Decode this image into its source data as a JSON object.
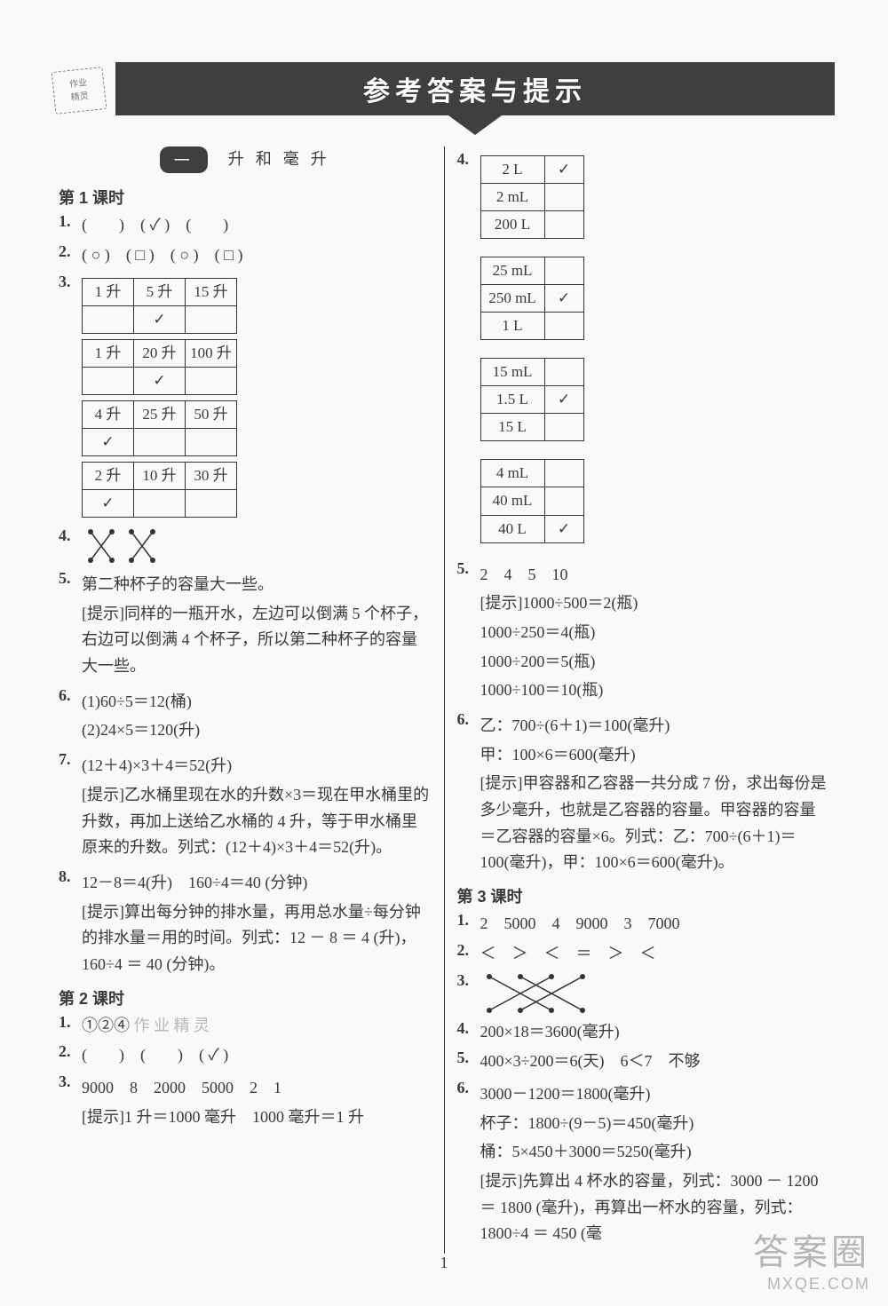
{
  "header": {
    "title": "参考答案与提示"
  },
  "stamp": {
    "line1": "作业",
    "line2": "精灵"
  },
  "unit": {
    "number": "一",
    "name": "升 和 毫 升"
  },
  "left": {
    "s1": {
      "title": "第 1 课时",
      "q1": "(　　)　( ✓ )　(　　)",
      "q2": "( ○ )　( □ )　( ○ )　( □ )",
      "q3": {
        "tables": [
          {
            "h": [
              "1 升",
              "5 升",
              "15 升"
            ],
            "mark_col": 1,
            "mark": "✓"
          },
          {
            "h": [
              "1 升",
              "20 升",
              "100 升"
            ],
            "mark_col": 1,
            "mark": "✓"
          },
          {
            "h": [
              "4 升",
              "25 升",
              "50 升"
            ],
            "mark_col": 0,
            "mark": "✓"
          },
          {
            "h": [
              "2 升",
              "10 升",
              "30 升"
            ],
            "mark_col": 0,
            "mark": "✓"
          }
        ]
      },
      "q5": {
        "a": "第二种杯子的容量大一些。",
        "hint": "[提示]同样的一瓶开水，左边可以倒满 5 个杯子，右边可以倒满 4 个杯子，所以第二种杯子的容量大一些。"
      },
      "q6": {
        "a": "(1)60÷5＝12(桶)",
        "b": "(2)24×5＝120(升)"
      },
      "q7": {
        "a": "(12＋4)×3＋4＝52(升)",
        "hint": "[提示]乙水桶里现在水的升数×3＝现在甲水桶里的升数，再加上送给乙水桶的 4 升，等于甲水桶里原来的升数。列式：(12＋4)×3＋4＝52(升)。"
      },
      "q8": {
        "a": "12－8＝4(升)　160÷4＝40 (分钟)",
        "hint": "[提示]算出每分钟的排水量，再用总水量÷每分钟的排水量＝用的时间。列式：12 － 8 ＝ 4 (升)，160÷4 ＝ 40 (分钟)。"
      }
    },
    "s2": {
      "title": "第 2 课时",
      "q1": "①②④",
      "q2": "(　　)　(　　)　( ✓ )",
      "q3": {
        "a": "9000　8　2000　5000　2　1",
        "hint": "[提示]1 升＝1000 毫升　1000 毫升＝1 升"
      }
    }
  },
  "right": {
    "q4": {
      "tables": [
        {
          "rows": [
            "2 L",
            "2 mL",
            "200 L"
          ],
          "mark_row": 0,
          "mark": "✓"
        },
        {
          "rows": [
            "25 mL",
            "250 mL",
            "1 L"
          ],
          "mark_row": 1,
          "mark": "✓"
        },
        {
          "rows": [
            "15 mL",
            "1.5 L",
            "15 L"
          ],
          "mark_row": 1,
          "mark": "✓"
        },
        {
          "rows": [
            "4 mL",
            "40 mL",
            "40 L"
          ],
          "mark_row": 2,
          "mark": "✓"
        }
      ]
    },
    "q5": {
      "a": "2　4　5　10",
      "hints": [
        "[提示]1000÷500＝2(瓶)",
        "1000÷250＝4(瓶)",
        "1000÷200＝5(瓶)",
        "1000÷100＝10(瓶)"
      ]
    },
    "q6": {
      "a": "乙：700÷(6＋1)＝100(毫升)",
      "b": "甲：100×6＝600(毫升)",
      "hint": "[提示]甲容器和乙容器一共分成 7 份，求出每份是多少毫升，也就是乙容器的容量。甲容器的容量＝乙容器的容量×6。列式：乙：700÷(6＋1)＝100(毫升)，甲：100×6＝600(毫升)。"
    },
    "s3": {
      "title": "第 3 课时",
      "q1": "2　5000　4　9000　3　7000",
      "q2": "＜　＞　＜　＝　＞　＜",
      "q4": "200×18＝3600(毫升)",
      "q5": "400×3÷200＝6(天)　6＜7　不够",
      "q6": {
        "a": "3000－1200＝1800(毫升)",
        "b": "杯子：1800÷(9－5)＝450(毫升)",
        "c": "桶：5×450＋3000＝5250(毫升)",
        "hint": "[提示]先算出 4 杯水的容量，列式：3000 － 1200 ＝ 1800 (毫升)，再算出一杯水的容量，列式：1800÷4 ＝ 450 (毫"
      }
    }
  },
  "pagenum": "1",
  "watermark": {
    "big": "答案圈",
    "small": "MXQE.COM"
  }
}
